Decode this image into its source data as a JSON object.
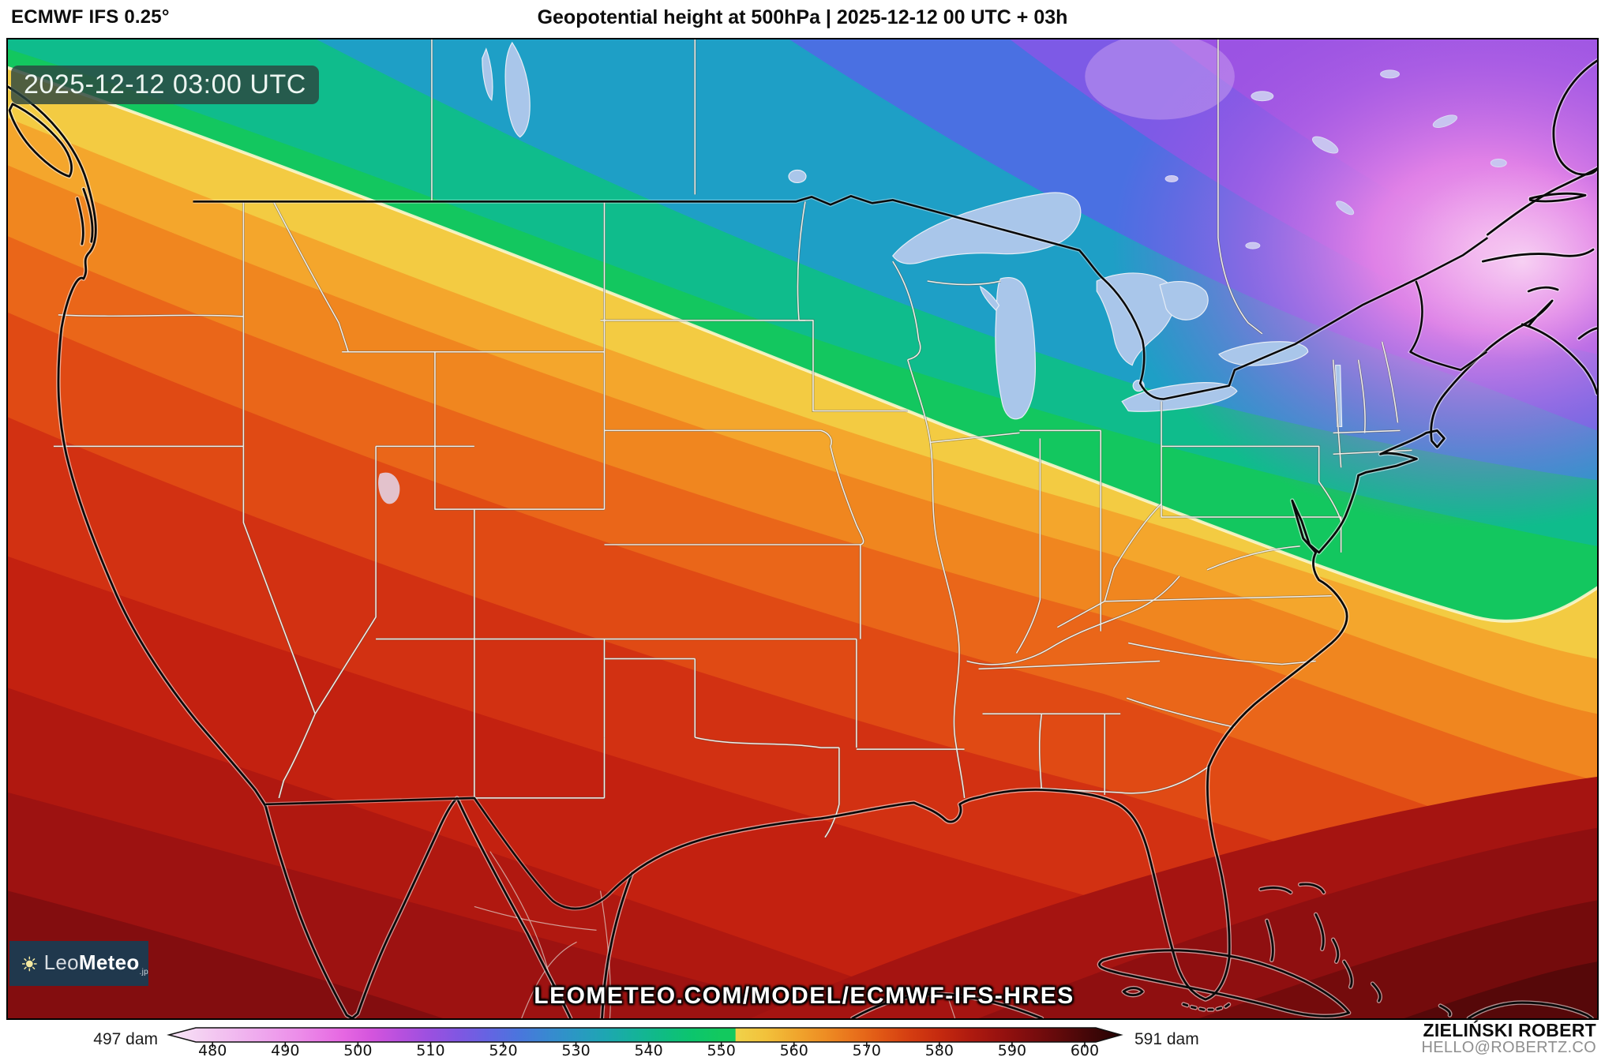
{
  "header": {
    "model": "ECMWF IFS 0.25°",
    "title": "Geopotential height at 500hPa | 2025-12-12 00 UTC + 03h"
  },
  "map": {
    "timestamp": "2025-12-12 03:00 UTC",
    "region": "north-america-conus",
    "field": "geopotential-height-500hPa"
  },
  "watermark": {
    "url": "LEOMETEO.COM/MODEL/ECMWF-IFS-HRES"
  },
  "logo": {
    "leo": "Leo",
    "meteo": "Meteo",
    "tld": ".jp",
    "bg": "#20384d",
    "sun": "#f5e9a0"
  },
  "footer": {
    "author": "ZIELIŃSKI ROBERT",
    "email": "HELLO@ROBERTZ.CO"
  },
  "colors": {
    "badge_bg": "rgba(44,70,63,0.82)",
    "low_center": "#f7d0f3",
    "high_area": "#560809",
    "iso552_highlight": "#fdf6cc"
  },
  "colorbar": {
    "min_label": "497 dam",
    "max_label": "591 dam",
    "unit": "dam",
    "ticks": [
      480,
      490,
      500,
      510,
      520,
      530,
      540,
      550,
      560,
      570,
      580,
      590,
      600
    ],
    "value_min": 474,
    "value_max": 605,
    "stops": [
      [
        474,
        "#f8e6f7"
      ],
      [
        480,
        "#f3c8f1"
      ],
      [
        486,
        "#efabee"
      ],
      [
        492,
        "#ec8ce9"
      ],
      [
        498,
        "#e667e2"
      ],
      [
        502,
        "#d354dd"
      ],
      [
        506,
        "#b650de"
      ],
      [
        510,
        "#9a50e0"
      ],
      [
        514,
        "#7f57e2"
      ],
      [
        518,
        "#6464e2"
      ],
      [
        522,
        "#4b75dd"
      ],
      [
        526,
        "#3988d1"
      ],
      [
        530,
        "#2a98c3"
      ],
      [
        534,
        "#1ea6b2"
      ],
      [
        538,
        "#15b29b"
      ],
      [
        542,
        "#0fbc83"
      ],
      [
        546,
        "#0cc56d"
      ],
      [
        550,
        "#12c95e"
      ],
      [
        551.9,
        "#12c95e"
      ],
      [
        552,
        "#f0d24a"
      ],
      [
        556,
        "#f2c23b"
      ],
      [
        560,
        "#f0a82e"
      ],
      [
        564,
        "#ee8f24"
      ],
      [
        568,
        "#e9731c"
      ],
      [
        572,
        "#e05715"
      ],
      [
        576,
        "#d43d11"
      ],
      [
        580,
        "#c52a0f"
      ],
      [
        584,
        "#b01b0f"
      ],
      [
        588,
        "#99120f"
      ],
      [
        592,
        "#800d0e"
      ],
      [
        596,
        "#650a0b"
      ],
      [
        600,
        "#470708"
      ],
      [
        604,
        "#2b0405"
      ]
    ]
  }
}
